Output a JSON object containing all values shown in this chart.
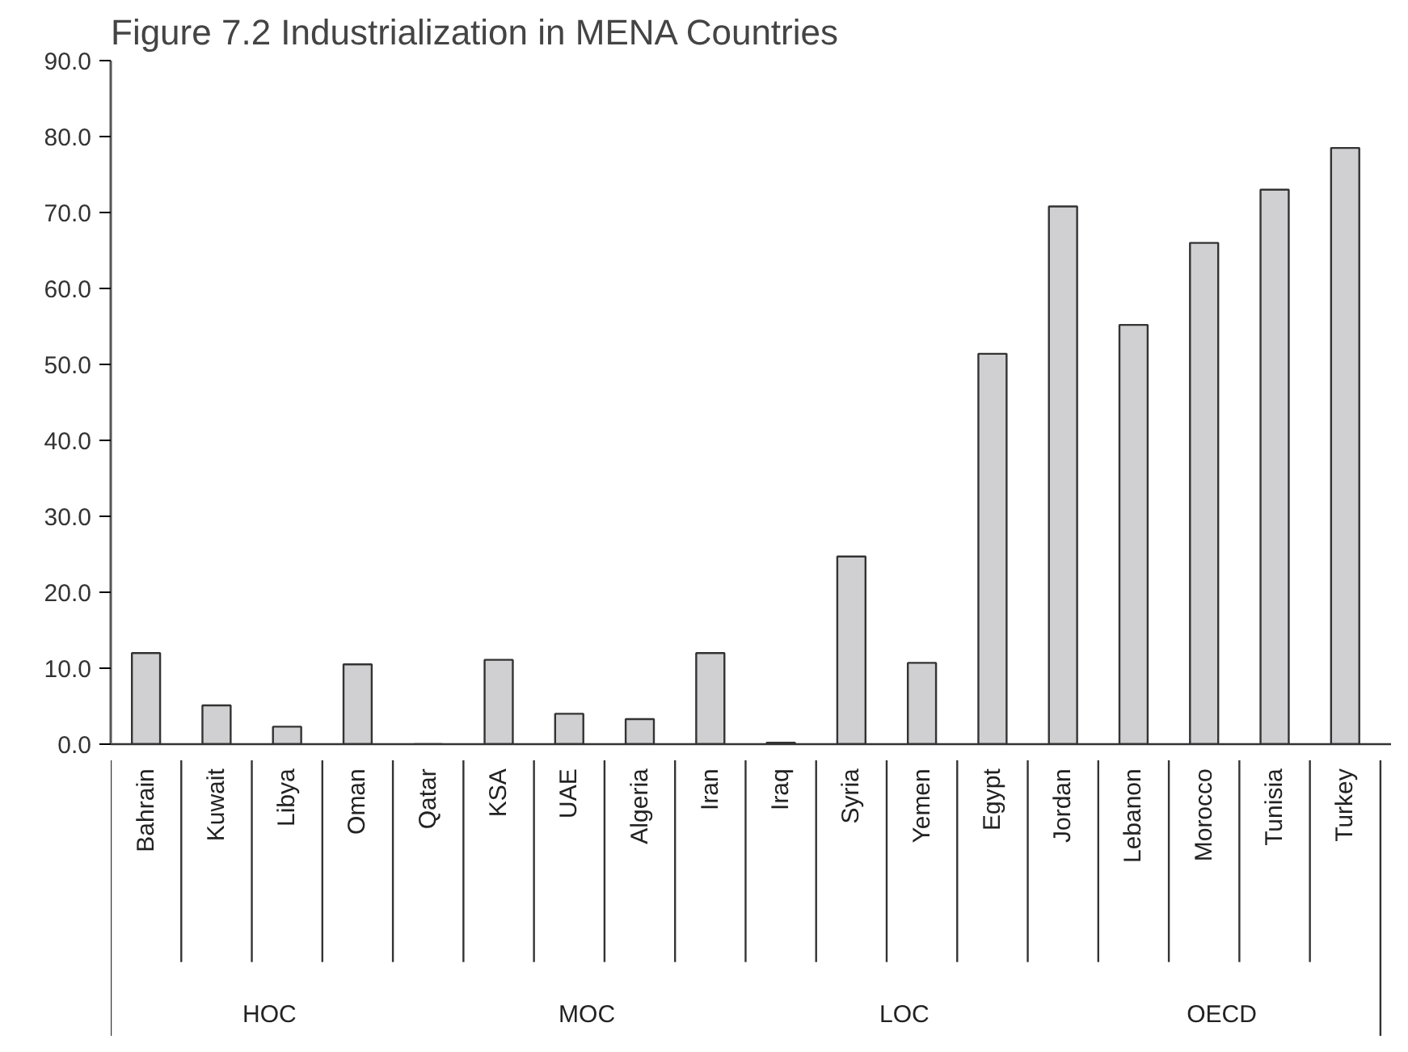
{
  "chart_data": {
    "type": "bar",
    "title": "Figure 7.2 Industrialization in MENA Countries",
    "categories": [
      "Bahrain",
      "Kuwait",
      "Libya",
      "Oman",
      "Qatar",
      "KSA",
      "UAE",
      "Algeria",
      "Iran",
      "Iraq",
      "Syria",
      "Yemen",
      "Egypt",
      "Jordan",
      "Lebanon",
      "Morocco",
      "Tunisia",
      "Turkey"
    ],
    "values": [
      12.0,
      5.1,
      2.3,
      10.5,
      0.0,
      11.1,
      4.0,
      3.3,
      12.0,
      0.2,
      24.7,
      10.7,
      51.4,
      70.8,
      55.2,
      66.0,
      73.0,
      78.5
    ],
    "color": "#d0d0d2",
    "ylim": [
      0,
      90
    ],
    "yticks": [
      {
        "value": 0,
        "label": "0.0"
      },
      {
        "value": 10,
        "label": "10.0"
      },
      {
        "value": 20,
        "label": "20.0"
      },
      {
        "value": 30,
        "label": "30.0"
      },
      {
        "value": 40,
        "label": "40.0"
      },
      {
        "value": 50,
        "label": "50.0"
      },
      {
        "value": 60,
        "label": "60.0"
      },
      {
        "value": 70,
        "label": "70.0"
      },
      {
        "value": 80,
        "label": "80.0"
      },
      {
        "value": 90,
        "label": "90.0"
      }
    ],
    "annotations": [
      "HOC",
      "MOC",
      "LOC",
      "OECD"
    ],
    "grid": false
  }
}
